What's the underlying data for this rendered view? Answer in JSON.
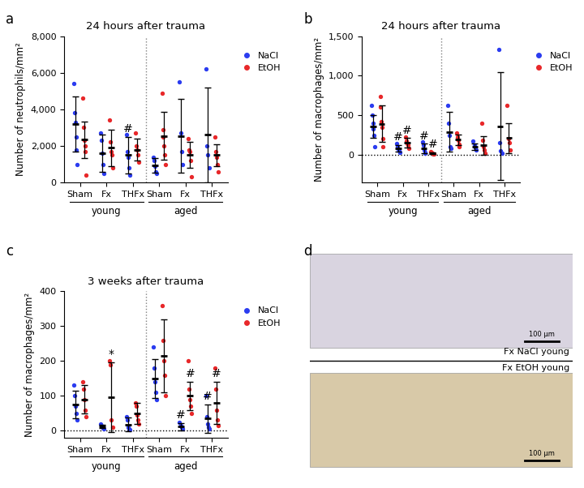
{
  "chart_data": [
    {
      "type": "scatter",
      "panel_label": "a",
      "title": "24 hours after trauma",
      "y_label": "Number of neutrophils/mm²",
      "categories": [
        "Sham",
        "Fx",
        "THFx",
        "Sham",
        "Fx",
        "THFx"
      ],
      "groups": [
        {
          "label": "young",
          "span": [
            0,
            2
          ]
        },
        {
          "label": "aged",
          "span": [
            3,
            5
          ]
        }
      ],
      "ylim": [
        0,
        8000
      ],
      "yticks": [
        0,
        {
          "value": 2000,
          "label": "2,000"
        },
        {
          "value": 4000,
          "label": "4,000"
        },
        {
          "value": 6000,
          "label": "6,000"
        },
        {
          "value": 8000,
          "label": "8,000"
        }
      ],
      "legend": "upper left",
      "series": [
        {
          "name": "NaCl",
          "color": "#2b3cf0",
          "marker": "o",
          "values": [
            [
              5400,
              3800,
              3300,
              2500,
              1800,
              1000
            ],
            [
              2700,
              2300,
              1600,
              1000,
              500
            ],
            [
              2600,
              1700,
              1400,
              800,
              400
            ],
            [
              1400,
              1200,
              900,
              600,
              500
            ],
            [
              5500,
              2700,
              1700,
              1000
            ],
            [
              6200,
              2000,
              1500,
              800
            ]
          ],
          "mean": [
            3200,
            1600,
            1500,
            950,
            2550,
            2600
          ],
          "sd": [
            1500,
            1000,
            1000,
            400,
            2000,
            2600
          ]
        },
        {
          "name": "EtOH",
          "color": "#e8282a",
          "marker": "o",
          "values": [
            [
              4600,
              3000,
              2300,
              2000,
              1700,
              400
            ],
            [
              3400,
              2200,
              1700,
              1500,
              800
            ],
            [
              2700,
              2000,
              1800,
              1500,
              1100
            ],
            [
              4900,
              2900,
              2500,
              2000,
              1500,
              1000
            ],
            [
              2400,
              1800,
              1700,
              1200,
              300
            ],
            [
              2500,
              1700,
              1400,
              1000,
              600
            ]
          ],
          "mean": [
            2350,
            1900,
            1800,
            2550,
            1500,
            1500
          ],
          "sd": [
            1000,
            1000,
            600,
            1300,
            700,
            600
          ]
        }
      ],
      "annotations": [
        {
          "text": "#",
          "category": 2,
          "series": "NaCl"
        }
      ]
    },
    {
      "type": "scatter",
      "panel_label": "b",
      "title": "24 hours after trauma",
      "y_label": "Number of macrophages/mm²",
      "categories": [
        "Sham",
        "Fx",
        "THFx",
        "Sham",
        "Fx",
        "THFx"
      ],
      "groups": [
        {
          "label": "young",
          "span": [
            0,
            2
          ]
        },
        {
          "label": "aged",
          "span": [
            3,
            5
          ]
        }
      ],
      "ylim": [
        -350,
        1500
      ],
      "yticks": [
        0,
        500,
        {
          "value": 1000,
          "label": "1,000"
        },
        {
          "value": 1500,
          "label": "1,500"
        }
      ],
      "legend": "upper left",
      "series": [
        {
          "name": "NaCl",
          "color": "#2b3cf0",
          "marker": "o",
          "values": [
            [
              620,
              500,
              400,
              330,
              250,
              100
            ],
            [
              140,
              100,
              70,
              50,
              30
            ],
            [
              160,
              120,
              60,
              30,
              20
            ],
            [
              620,
              400,
              250,
              100,
              80
            ],
            [
              170,
              120,
              90,
              60
            ],
            [
              1330,
              150,
              50,
              20
            ]
          ],
          "mean": [
            360,
            80,
            80,
            290,
            100,
            360
          ],
          "sd": [
            140,
            40,
            60,
            250,
            40,
            680
          ]
        },
        {
          "name": "EtOH",
          "color": "#e8282a",
          "marker": "o",
          "values": [
            [
              740,
              600,
              420,
              350,
              200,
              100
            ],
            [
              230,
              170,
              140,
              120,
              80
            ],
            [
              40,
              30,
              20,
              10,
              5
            ],
            [
              280,
              230,
              180,
              130,
              100
            ],
            [
              400,
              180,
              100,
              60,
              20
            ],
            [
              620,
              200,
              150,
              60
            ]
          ],
          "mean": [
            390,
            150,
            20,
            190,
            120,
            210
          ],
          "sd": [
            230,
            60,
            15,
            70,
            120,
            190
          ]
        }
      ],
      "annotations": [
        {
          "text": "#",
          "category": 1,
          "series": "NaCl"
        },
        {
          "text": "#",
          "category": 1,
          "series": "EtOH"
        },
        {
          "text": "#",
          "category": 2,
          "series": "NaCl"
        },
        {
          "text": "#",
          "category": 2,
          "series": "EtOH"
        }
      ]
    },
    {
      "type": "scatter",
      "panel_label": "c",
      "title": "3 weeks after trauma",
      "y_label": "Number of macrophages/mm²",
      "categories": [
        "Sham",
        "Fx",
        "THFx",
        "Sham",
        "Fx",
        "THFx"
      ],
      "groups": [
        {
          "label": "young",
          "span": [
            0,
            2
          ]
        },
        {
          "label": "aged",
          "span": [
            3,
            5
          ]
        }
      ],
      "ylim": [
        -20,
        400
      ],
      "yticks": [
        0,
        100,
        200,
        300,
        400
      ],
      "legend": "upper left",
      "series": [
        {
          "name": "NaCl",
          "color": "#2b3cf0",
          "marker": "o",
          "values": [
            [
              130,
              100,
              70,
              50,
              30
            ],
            [
              20,
              15,
              12,
              8,
              5
            ],
            [
              40,
              30,
              10,
              5,
              3
            ],
            [
              240,
              180,
              140,
              110,
              90
            ],
            [
              25,
              15,
              10,
              5
            ],
            [
              100,
              40,
              20,
              10,
              5
            ]
          ],
          "mean": [
            75,
            12,
            18,
            150,
            12,
            35
          ],
          "sd": [
            40,
            5,
            20,
            55,
            10,
            40
          ]
        },
        {
          "name": "EtOH",
          "color": "#e8282a",
          "marker": "o",
          "values": [
            [
              140,
              120,
              90,
              60,
              40
            ],
            [
              200,
              190,
              30,
              10
            ],
            [
              80,
              70,
              45,
              30,
              20
            ],
            [
              360,
              260,
              200,
              160,
              100
            ],
            [
              200,
              120,
              90,
              70,
              50
            ],
            [
              180,
              120,
              60,
              30,
              15
            ]
          ],
          "mean": [
            90,
            97,
            50,
            215,
            100,
            80
          ],
          "sd": [
            40,
            100,
            30,
            105,
            40,
            60
          ]
        }
      ],
      "annotations": [
        {
          "text": "*",
          "category": 1,
          "series": "EtOH"
        },
        {
          "text": "#",
          "category": 4,
          "series": "NaCl"
        },
        {
          "text": "#",
          "category": 4,
          "series": "EtOH"
        },
        {
          "text": "#",
          "category": 5,
          "series": "NaCl"
        },
        {
          "text": "#",
          "category": 5,
          "series": "EtOH"
        }
      ]
    }
  ],
  "image_panel": {
    "panel_label": "d",
    "images": [
      {
        "label": "Fx NaCl young",
        "scale_bar": "100 µm"
      },
      {
        "label": "Fx EtOH young",
        "scale_bar": "100 µm"
      }
    ]
  }
}
